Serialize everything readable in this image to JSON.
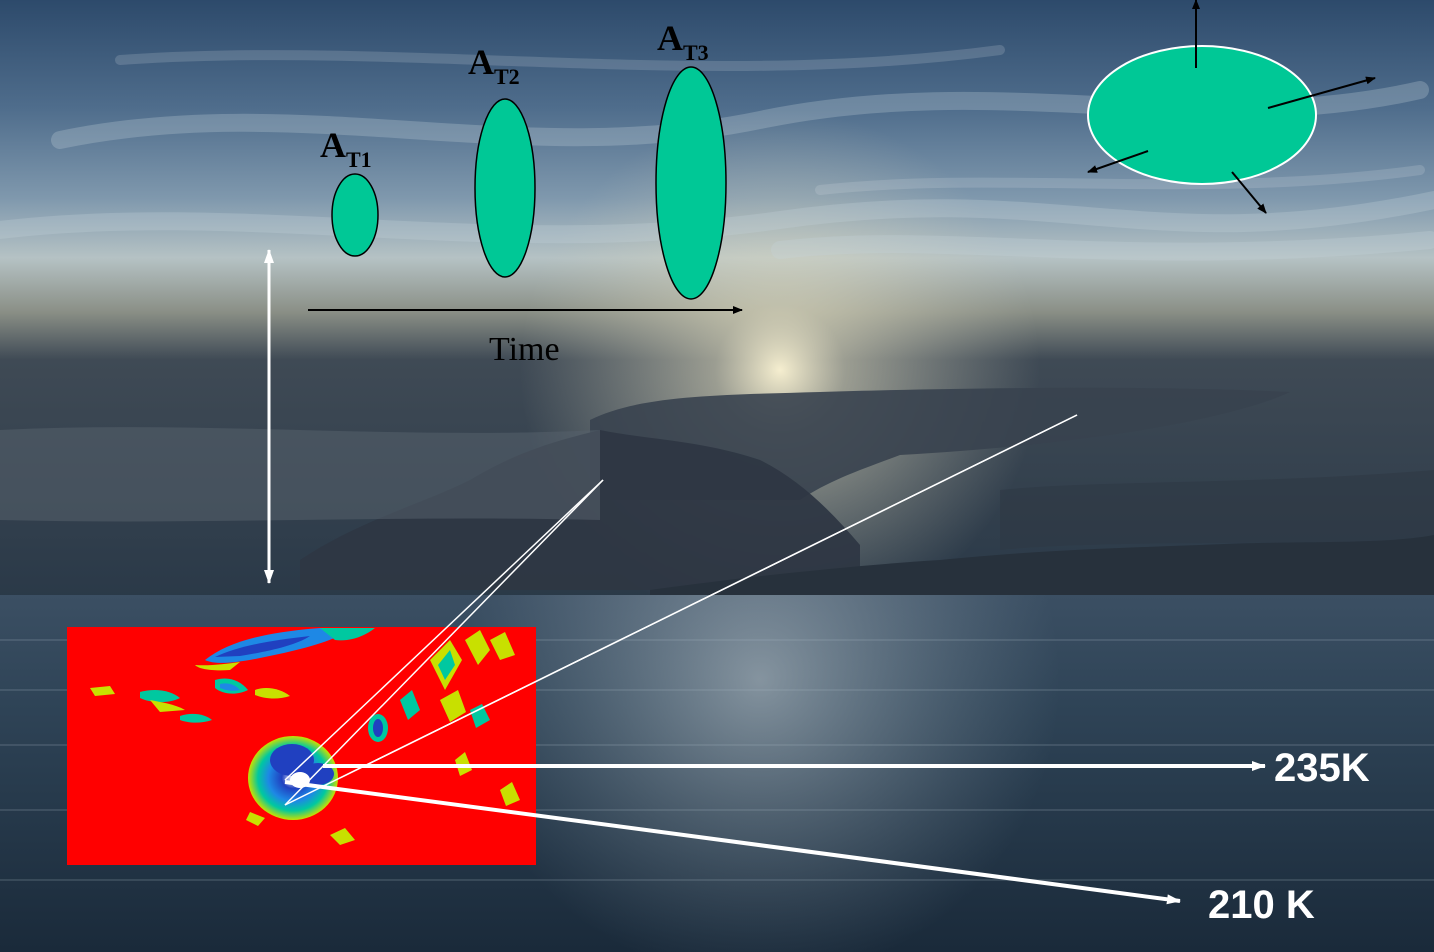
{
  "labels": {
    "a_t1": {
      "main": "A",
      "sub": "T1"
    },
    "a_t2": {
      "main": "A",
      "sub": "T2"
    },
    "a_t3": {
      "main": "A",
      "sub": "T3"
    },
    "time": "Time",
    "temp_235": "235K",
    "temp_210": "210 K"
  },
  "colors": {
    "cloud_fill": "#00c896",
    "ir_background": "#ff0000",
    "annotation_line": "#ffffff",
    "arrow_black": "#000000"
  },
  "icons": {
    "growth_ellipses": "ellipse-shape",
    "expansion_ellipse": "ellipse-with-radial-arrows",
    "vertical_double_arrow": "double-headed-arrow",
    "satellite_image": "infrared-cloud-map"
  }
}
